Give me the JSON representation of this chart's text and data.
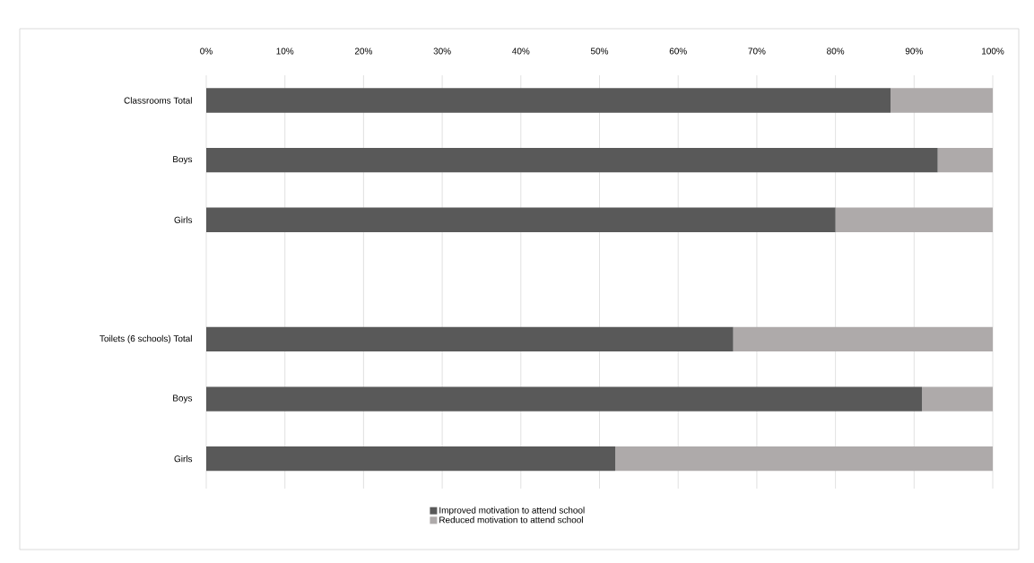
{
  "chart_data": {
    "type": "bar",
    "orientation": "horizontal",
    "stacked": true,
    "categories": [
      "Classrooms Total",
      "Boys",
      "Girls",
      null,
      "Toilets (6 schools) Total",
      "Boys",
      "Girls"
    ],
    "series": [
      {
        "name": "Improved motivation to attend school",
        "color": "#595959",
        "values": [
          87,
          93,
          80,
          null,
          67,
          91,
          52
        ]
      },
      {
        "name": "Reduced motivation to attend school",
        "color": "#aeaaaa",
        "values": [
          13,
          7,
          20,
          null,
          33,
          9,
          48
        ]
      }
    ],
    "xlim": [
      0,
      100
    ],
    "xticks": [
      {
        "value": 0,
        "label": "0%"
      },
      {
        "value": 10,
        "label": "10%"
      },
      {
        "value": 20,
        "label": "20%"
      },
      {
        "value": 30,
        "label": "30%"
      },
      {
        "value": 40,
        "label": "40%"
      },
      {
        "value": 50,
        "label": "50%"
      },
      {
        "value": 60,
        "label": "60%"
      },
      {
        "value": 70,
        "label": "70%"
      },
      {
        "value": 80,
        "label": "80%"
      },
      {
        "value": 90,
        "label": "90%"
      },
      {
        "value": 100,
        "label": "100%"
      }
    ],
    "grid": "x",
    "legend": "bottom"
  }
}
